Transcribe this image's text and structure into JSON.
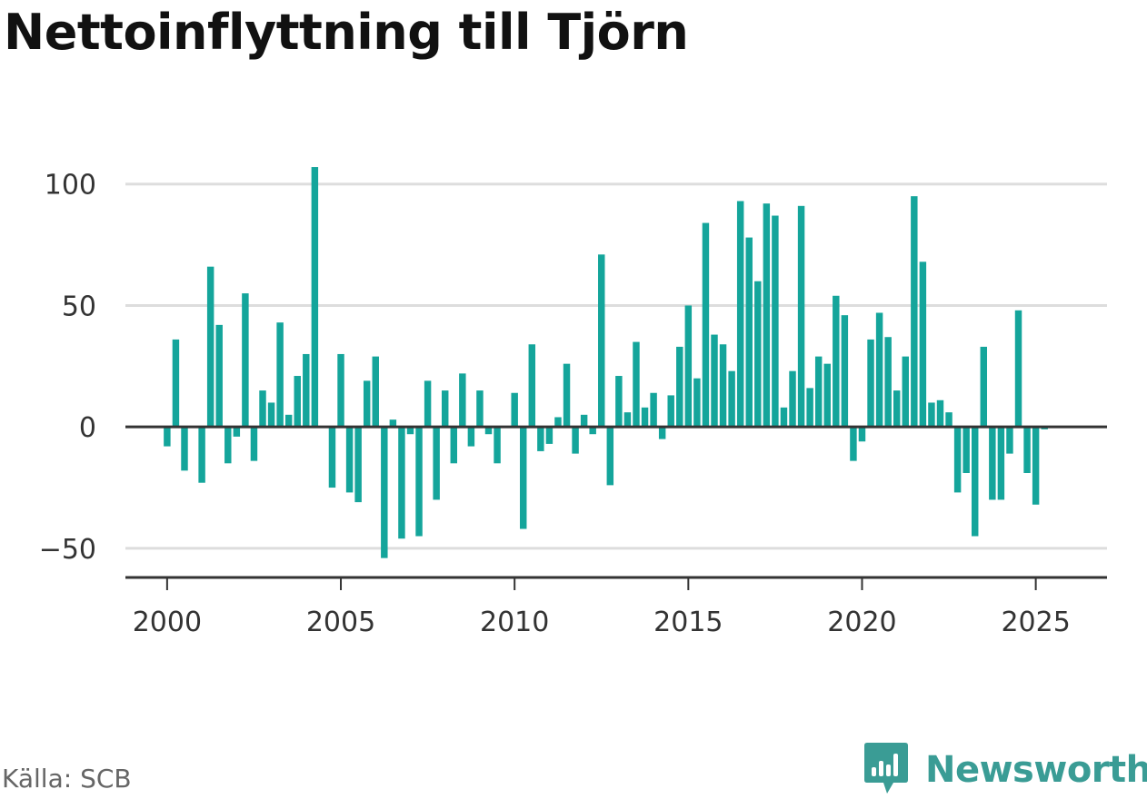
{
  "title": "Nettoinflyttning till Tjörn",
  "source": "Källa: SCB",
  "brand": {
    "name": "Newsworthy",
    "icon": "newsworthy-logo-icon"
  },
  "colors": {
    "bar": "#14a59b",
    "grid": "#dddddd",
    "axis": "#333333",
    "brand": "#3a9c95"
  },
  "chart_data": {
    "type": "bar",
    "x": [
      2000.0,
      2000.25,
      2000.5,
      2000.75,
      2001.0,
      2001.25,
      2001.5,
      2001.75,
      2002.0,
      2002.25,
      2002.5,
      2002.75,
      2003.0,
      2003.25,
      2003.5,
      2003.75,
      2004.0,
      2004.25,
      2004.5,
      2004.75,
      2005.0,
      2005.25,
      2005.5,
      2005.75,
      2006.0,
      2006.25,
      2006.5,
      2006.75,
      2007.0,
      2007.25,
      2007.5,
      2007.75,
      2008.0,
      2008.25,
      2008.5,
      2008.75,
      2009.0,
      2009.25,
      2009.5,
      2009.75,
      2010.0,
      2010.25,
      2010.5,
      2010.75,
      2011.0,
      2011.25,
      2011.5,
      2011.75,
      2012.0,
      2012.25,
      2012.5,
      2012.75,
      2013.0,
      2013.25,
      2013.5,
      2013.75,
      2014.0,
      2014.25,
      2014.5,
      2014.75,
      2015.0,
      2015.25,
      2015.5,
      2015.75,
      2016.0,
      2016.25,
      2016.5,
      2016.75,
      2017.0,
      2017.25,
      2017.5,
      2017.75,
      2018.0,
      2018.25,
      2018.5,
      2018.75,
      2019.0,
      2019.25,
      2019.5,
      2019.75,
      2020.0,
      2020.25,
      2020.5,
      2020.75,
      2021.0,
      2021.25,
      2021.5,
      2021.75,
      2022.0,
      2022.25,
      2022.5,
      2022.75,
      2023.0,
      2023.25,
      2023.5,
      2023.75,
      2024.0,
      2024.25,
      2024.5,
      2024.75,
      2025.0,
      2025.25
    ],
    "values": [
      -8,
      36,
      -18,
      0,
      -23,
      66,
      42,
      -15,
      -4,
      55,
      -14,
      15,
      10,
      43,
      5,
      21,
      30,
      107,
      0,
      -25,
      30,
      -27,
      -31,
      19,
      29,
      -54,
      3,
      -46,
      -3,
      -45,
      19,
      -30,
      15,
      -15,
      22,
      -8,
      15,
      -3,
      -15,
      0,
      14,
      -42,
      34,
      -10,
      -7,
      4,
      26,
      -11,
      5,
      -3,
      71,
      -24,
      21,
      6,
      35,
      8,
      14,
      -5,
      13,
      33,
      50,
      20,
      84,
      38,
      34,
      23,
      93,
      78,
      60,
      92,
      87,
      8,
      23,
      91,
      16,
      29,
      26,
      54,
      46,
      -14,
      -6,
      36,
      47,
      37,
      15,
      29,
      95,
      68,
      10,
      11,
      6,
      -27,
      -19,
      -45,
      33,
      -30,
      -30,
      -11,
      48,
      -19,
      -32,
      -1
    ],
    "x_ticks": [
      2000,
      2005,
      2010,
      2015,
      2020,
      2025
    ],
    "x_tick_labels": [
      "2000",
      "2005",
      "2010",
      "2015",
      "2020",
      "2025"
    ],
    "y_ticks": [
      -50,
      0,
      50,
      100
    ],
    "y_tick_labels": [
      "−50",
      "0",
      "50",
      "100"
    ],
    "xlim": [
      1998.8,
      2027.05
    ],
    "ylim": [
      -62,
      110
    ],
    "grid": "horizontal",
    "xlabel": "",
    "ylabel": ""
  }
}
